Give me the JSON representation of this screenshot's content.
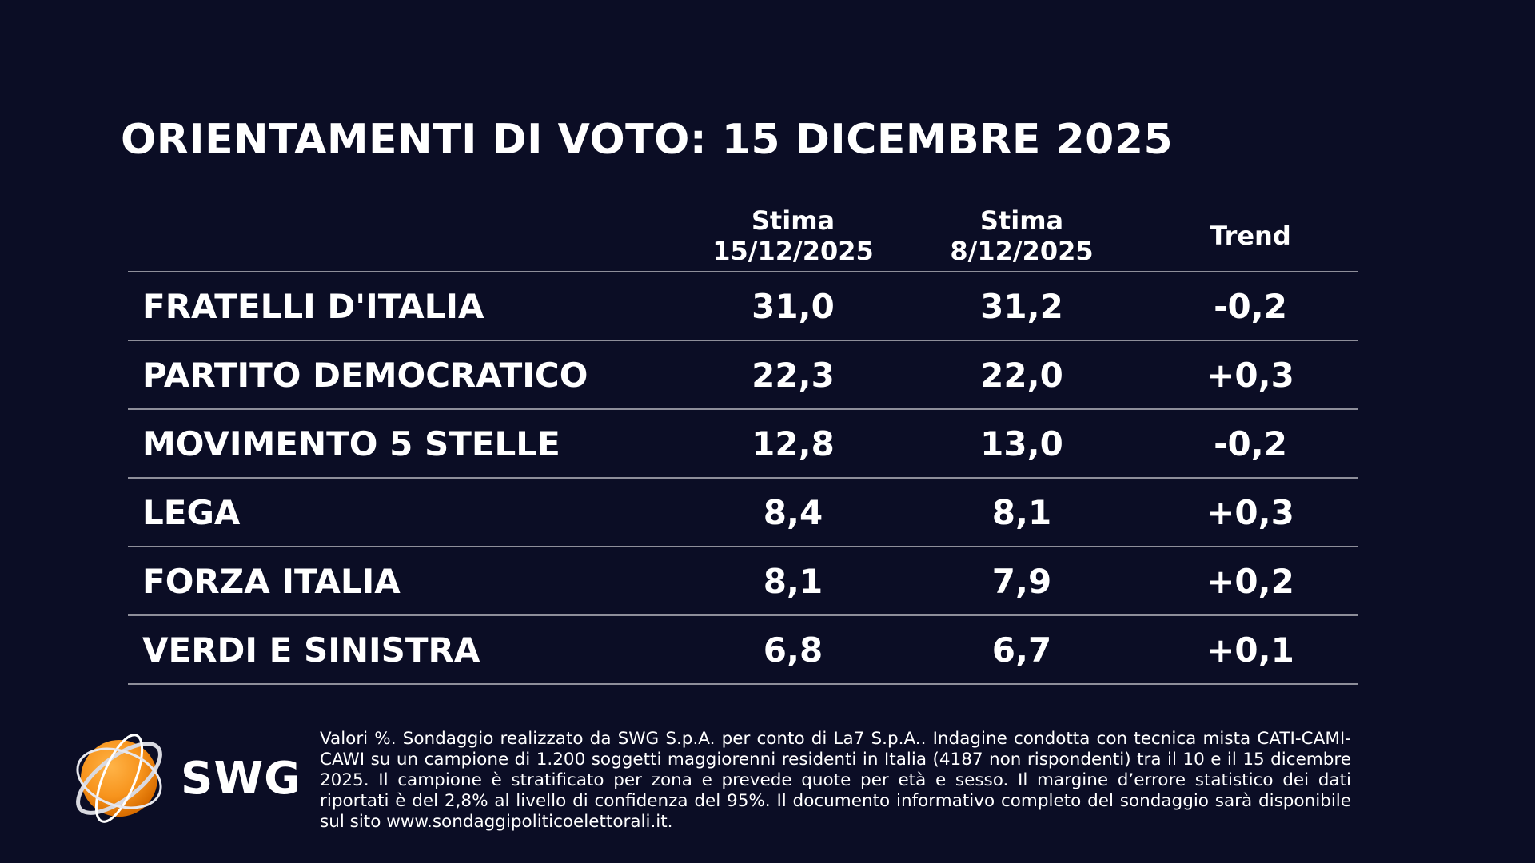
{
  "title": "ORIENTAMENTI DI VOTO: 15 DICEMBRE 2025",
  "columns": {
    "current": {
      "line1": "Stima",
      "line2": "15/12/2025"
    },
    "previous": {
      "line1": "Stima",
      "line2": "8/12/2025"
    },
    "trend": "Trend"
  },
  "rows": [
    {
      "party": "FRATELLI D'ITALIA",
      "current": "31,0",
      "previous": "31,2",
      "trend": "-0,2"
    },
    {
      "party": "PARTITO DEMOCRATICO",
      "current": "22,3",
      "previous": "22,0",
      "trend": "+0,3"
    },
    {
      "party": "MOVIMENTO 5 STELLE",
      "current": "12,8",
      "previous": "13,0",
      "trend": "-0,2"
    },
    {
      "party": "LEGA",
      "current": "8,4",
      "previous": "8,1",
      "trend": "+0,3"
    },
    {
      "party": "FORZA ITALIA",
      "current": "8,1",
      "previous": "7,9",
      "trend": "+0,2"
    },
    {
      "party": "VERDI E SINISTRA",
      "current": "6,8",
      "previous": "6,7",
      "trend": "+0,1"
    }
  ],
  "logo": {
    "text": "SWG",
    "icon": "swg-globe-icon",
    "colors": {
      "orange": "#f7941d",
      "ring": "#d9d9e0"
    }
  },
  "footnote": "Valori %. Sondaggio realizzato da SWG S.p.A. per conto di La7 S.p.A.. Indagine condotta con tecnica mista CATI-CAMI-CAWI su un campione di 1.200 soggetti maggiorenni residenti in Italia (4187 non rispondenti) tra il 10 e il 15 dicembre 2025. Il campione è stratificato per zona e prevede quote per età e sesso. Il margine d’errore statistico dei dati riportati è del 2,8% al livello di confidenza del 95%. Il documento informativo completo del sondaggio sarà disponibile sul sito www.sondaggipoliticoelettorali.it."
}
